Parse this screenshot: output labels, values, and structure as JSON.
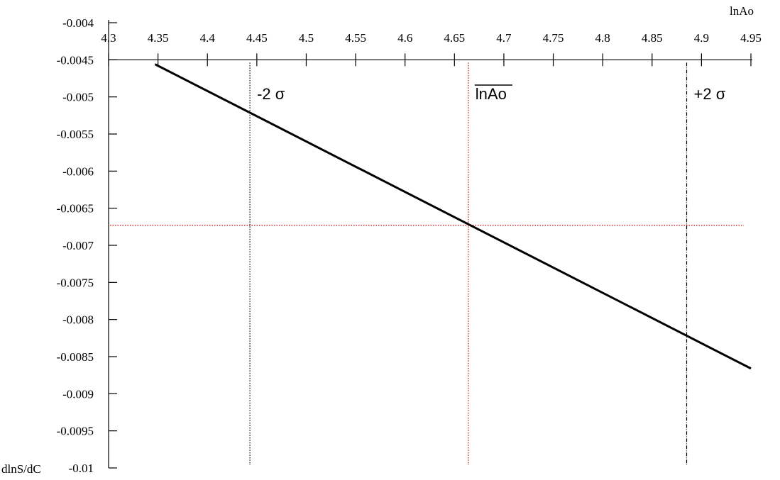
{
  "chart_data": {
    "type": "line",
    "xlabel": "lnAo",
    "ylabel": "dlnS/dC",
    "xlim": [
      4.3,
      4.95
    ],
    "ylim": [
      -0.01,
      -0.004
    ],
    "x_axis_position": "top",
    "grid": false,
    "x_ticks": [
      4.3,
      4.35,
      4.4,
      4.45,
      4.5,
      4.55,
      4.6,
      4.65,
      4.7,
      4.75,
      4.8,
      4.85,
      4.9,
      4.95
    ],
    "x_tick_labels": [
      "4.3",
      "4.35",
      "4.4",
      "4.45",
      "4.5",
      "4.55",
      "4.6",
      "4.65",
      "4.7",
      "4.75",
      "4.8",
      "4.85",
      "4.9",
      "4.95"
    ],
    "y_ticks": [
      -0.004,
      -0.0045,
      -0.005,
      -0.0055,
      -0.006,
      -0.0065,
      -0.007,
      -0.0075,
      -0.008,
      -0.0085,
      -0.009,
      -0.0095,
      -0.01
    ],
    "y_tick_labels": [
      "-0.004",
      "-0.0045",
      "-0.005",
      "-0.0055",
      "-0.006",
      "-0.0065",
      "-0.007",
      "-0.0075",
      "-0.008",
      "-0.0085",
      "-0.009",
      "-0.0095",
      "-0.01"
    ],
    "series": [
      {
        "x": [
          4.347,
          4.95
        ],
        "y": [
          -0.00456,
          -0.00866
        ],
        "color": "#000000"
      }
    ],
    "reference_lines": [
      {
        "orientation": "vertical",
        "x": 4.443,
        "label": "-2 σ",
        "color": "#000000",
        "style": "dotted"
      },
      {
        "orientation": "vertical",
        "x": 4.664,
        "label": "lnAo",
        "overline": true,
        "color": "#cc0000",
        "style": "dotted"
      },
      {
        "orientation": "vertical",
        "x": 4.885,
        "label": "+2 σ",
        "color": "#000000",
        "style": "dash-dot"
      },
      {
        "orientation": "horizontal",
        "y": -0.00673,
        "color": "#cc0000",
        "style": "dotted"
      }
    ]
  }
}
